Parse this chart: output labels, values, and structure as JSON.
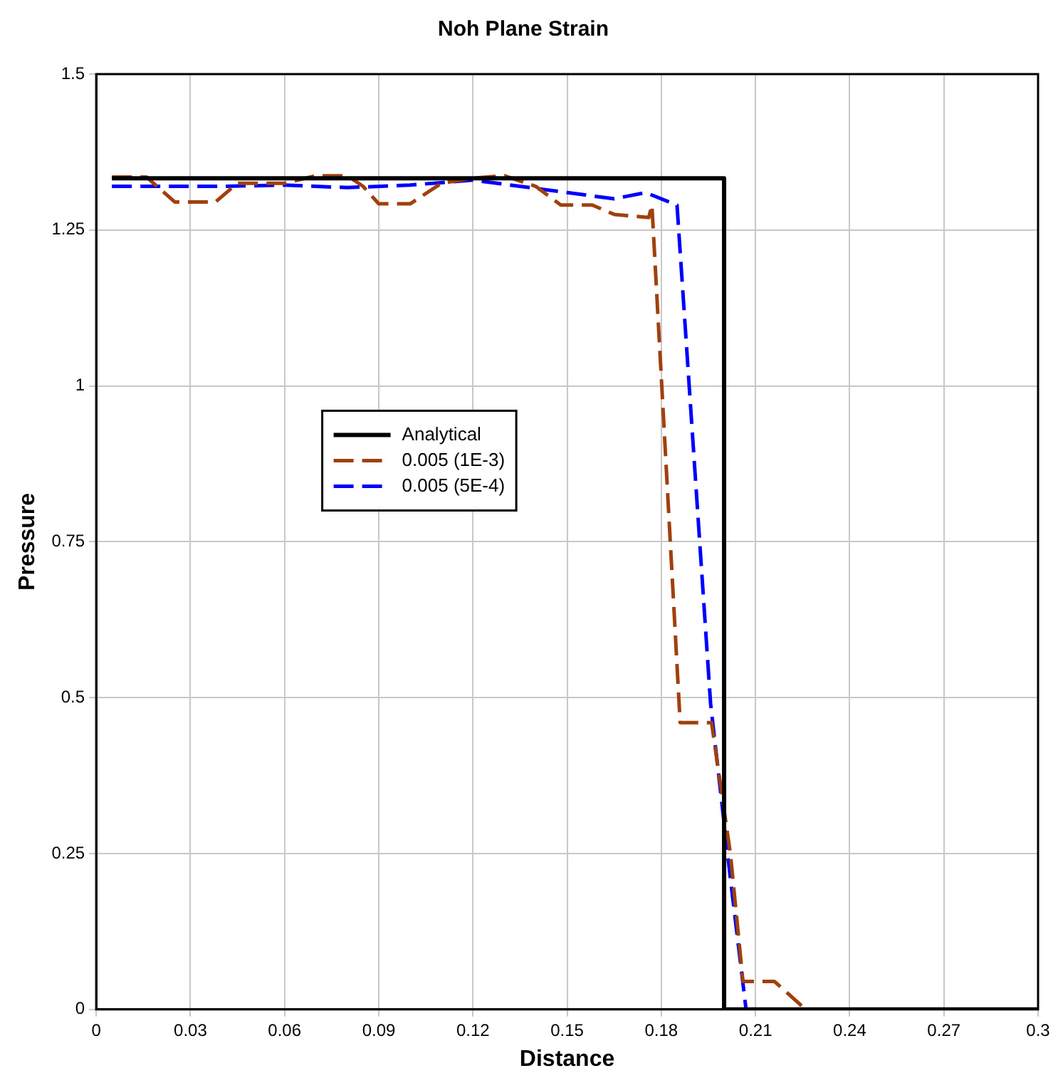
{
  "chart_data": {
    "type": "line",
    "title": "Noh Plane Strain",
    "xlabel": "Distance",
    "ylabel": "Pressure",
    "xlim": [
      0,
      0.3
    ],
    "xticks": [
      0,
      0.03,
      0.06,
      0.09,
      0.12,
      0.15,
      0.18,
      0.21,
      0.24,
      0.27,
      0.3
    ],
    "ylim": [
      0,
      1.5
    ],
    "yticks": [
      0,
      0.25,
      0.5,
      0.75,
      1,
      1.25,
      1.5
    ],
    "grid": true,
    "legend": "left",
    "marker": "none",
    "series": [
      {
        "name": "Analytical",
        "color": "#000000",
        "line_style": "solid",
        "x": [
          0.005,
          0.2,
          0.2,
          0.3
        ],
        "values": [
          1.333,
          1.333,
          0,
          0
        ]
      },
      {
        "name": "0.005 (1E-3)",
        "color": "#a0400c",
        "line_style": "dashed",
        "x": [
          0.005,
          0.016,
          0.025,
          0.038,
          0.045,
          0.06,
          0.07,
          0.08,
          0.085,
          0.09,
          0.1,
          0.11,
          0.12,
          0.13,
          0.14,
          0.148,
          0.158,
          0.165,
          0.176,
          0.177,
          0.186,
          0.196,
          0.202,
          0.206,
          0.216,
          0.226,
          0.3
        ],
        "values": [
          1.335,
          1.335,
          1.295,
          1.295,
          1.325,
          1.325,
          1.337,
          1.337,
          1.32,
          1.292,
          1.292,
          1.325,
          1.333,
          1.337,
          1.32,
          1.29,
          1.29,
          1.275,
          1.27,
          1.29,
          0.46,
          0.46,
          0.25,
          0.045,
          0.045,
          0,
          0
        ]
      },
      {
        "name": "0.005 (5E-4)",
        "color": "#0000ff",
        "line_style": "dashed",
        "x": [
          0.005,
          0.02,
          0.04,
          0.06,
          0.08,
          0.1,
          0.12,
          0.135,
          0.15,
          0.165,
          0.175,
          0.185,
          0.1957,
          0.202,
          0.2064,
          0.207,
          0.3
        ],
        "values": [
          1.32,
          1.32,
          1.32,
          1.322,
          1.318,
          1.322,
          1.33,
          1.32,
          1.31,
          1.3,
          1.31,
          1.29,
          0.49,
          0.21,
          0.025,
          0,
          0
        ]
      }
    ]
  }
}
